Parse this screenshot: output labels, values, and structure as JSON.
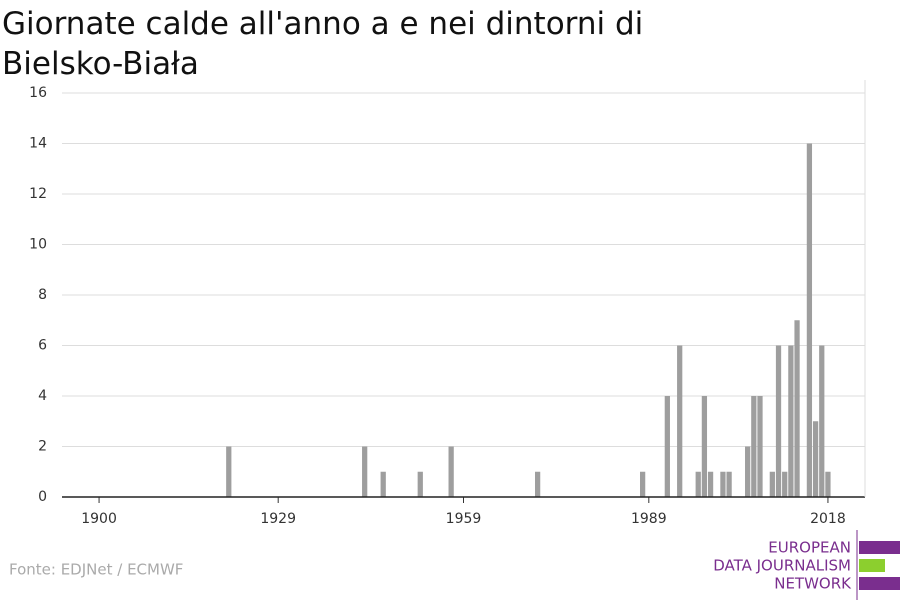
{
  "chart_data": {
    "type": "bar",
    "title": "Giornate calde all'anno a e nei dintorni di Bielsko-Biała",
    "source": "Fonte: EDJNet / ECMWF",
    "logo": [
      "EUROPEAN",
      "DATA JOURNALISM",
      "NETWORK"
    ],
    "color": "#9e9e9e",
    "x": [
      1921,
      1943,
      1946,
      1952,
      1957,
      1971,
      1988,
      1992,
      1994,
      1997,
      1998,
      1999,
      2001,
      2002,
      2005,
      2006,
      2007,
      2009,
      2010,
      2011,
      2012,
      2013,
      2015,
      2016,
      2017,
      2018
    ],
    "values": [
      2,
      2,
      1,
      1,
      2,
      1,
      1,
      4,
      6,
      1,
      4,
      1,
      1,
      1,
      2,
      4,
      4,
      1,
      6,
      1,
      6,
      7,
      14,
      3,
      6,
      1
    ],
    "xlim": [
      1894,
      2024
    ],
    "xticks": [
      1900,
      1929,
      1959,
      1989,
      2018
    ],
    "ylim": [
      0,
      16
    ],
    "yticks": [
      0,
      2,
      4,
      6,
      8,
      10,
      12,
      14,
      16
    ],
    "grid": true
  }
}
